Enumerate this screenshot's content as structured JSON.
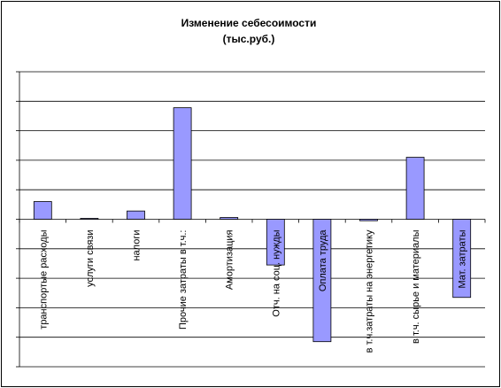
{
  "chart_data": {
    "type": "bar",
    "title": "Изменение  себесоимости",
    "subtitle": "(тыс.руб.)",
    "xlabel": "",
    "ylabel": "",
    "categories": [
      "транспортые расходы",
      "услуги связи",
      "налоги",
      "Прочие затраты в т.ч.:",
      "Амортизация",
      "Отч. на соц. нужды",
      "Оплата труда",
      "в т.ч.затраты на энергетику",
      "в т.ч. сырье и материалы",
      "Мат. затраты"
    ],
    "values": [
      0.6,
      0.03,
      0.28,
      3.78,
      0.06,
      -1.55,
      -4.15,
      -0.05,
      2.1,
      -2.65
    ],
    "ylim": [
      -5,
      5
    ],
    "ytick_step": 1,
    "grid": true,
    "legend": "none",
    "bar_color": "#9999ff",
    "inside_label_color": "#ffffff"
  }
}
